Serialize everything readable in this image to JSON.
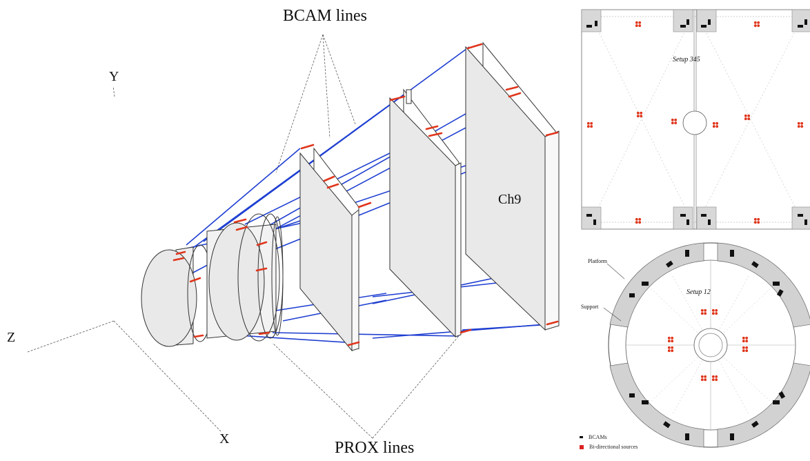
{
  "labels": {
    "bcam_lines": "BCAM lines",
    "prox_lines": "PROX lines",
    "axis_y": "Y",
    "axis_z": "Z",
    "axis_x": "X",
    "chamber": "Ch9",
    "setup_top": "Setup 345",
    "setup_bottom": "Setup 12",
    "platform": "Platform",
    "support": "Support"
  },
  "legend": [
    {
      "icon": "bcam-marker-icon",
      "label": "BCAMs"
    },
    {
      "icon": "bidirectional-source-icon",
      "label": "Bi-directional sources"
    }
  ],
  "colors": {
    "bcam_line": "#1f3fd1",
    "prox_line": "#1f3fd1",
    "red_marker": "#e0351b",
    "plate_fill": "#e9e9e9",
    "platform_fill": "#cfcfcf",
    "panel_fill": "#ffffff"
  }
}
